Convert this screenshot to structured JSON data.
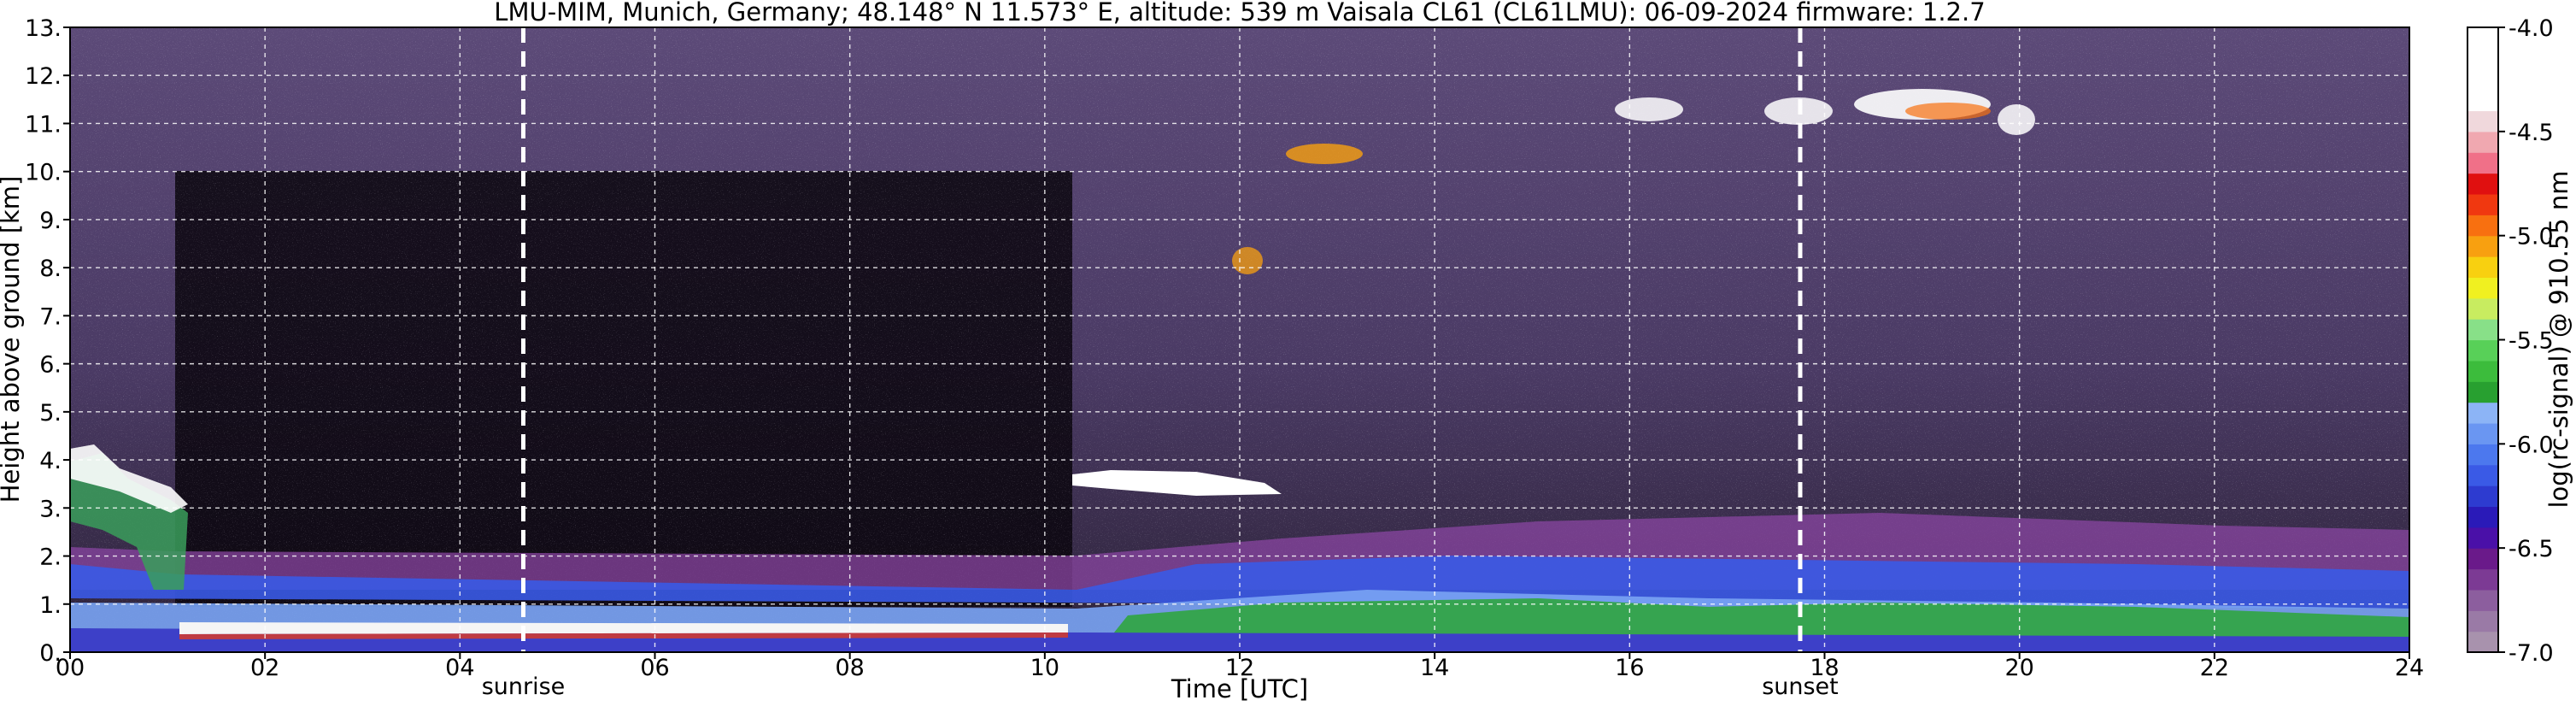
{
  "chart_data": {
    "type": "heatmap",
    "title": "LMU-MIM, Munich, Germany; 48.148° N 11.573° E, altitude: 539 m    Vaisala CL61 (CL61LMU): 06-09-2024    firmware: 1.2.7",
    "xlabel": "Time [UTC]",
    "ylabel": "Height above ground [km]",
    "xlim": [
      0,
      24
    ],
    "ylim": [
      0,
      13
    ],
    "x_ticks": [
      "00",
      "02",
      "04",
      "06",
      "08",
      "10",
      "12",
      "14",
      "16",
      "18",
      "20",
      "22",
      "24"
    ],
    "y_ticks": [
      "0.",
      "1.",
      "2.",
      "3.",
      "4.",
      "5.",
      "6.",
      "7.",
      "8.",
      "9.",
      "10.",
      "11.",
      "12.",
      "13."
    ],
    "grid": true,
    "colorbar": {
      "label": "log(rc-signal) @ 910.55 nm",
      "range": [
        -7.0,
        -4.0
      ],
      "ticks": [
        "-4.0",
        "-4.5",
        "-5.0",
        "-5.5",
        "-6.0",
        "-6.5",
        "-7.0"
      ],
      "colors": [
        "#a892ad",
        "#9a7aa6",
        "#8c5e9e",
        "#7c3a94",
        "#6a1a8a",
        "#4a10a8",
        "#2a1ab8",
        "#2d3bd0",
        "#3a5ae6",
        "#4c78ee",
        "#6a96f2",
        "#8cb4f6",
        "#28a030",
        "#3cbc3c",
        "#58d058",
        "#88e088",
        "#c8ec60",
        "#f0f020",
        "#f8d010",
        "#f8a010",
        "#f87010",
        "#f03810",
        "#e01010",
        "#f07088",
        "#f0a8b0",
        "#f0d8dc",
        "#ffffff",
        "#ffffff",
        "#ffffff",
        "#ffffff"
      ]
    },
    "annotations": [
      {
        "label": "sunrise",
        "x": 4.65
      },
      {
        "label": "sunset",
        "x": 17.75
      }
    ]
  }
}
